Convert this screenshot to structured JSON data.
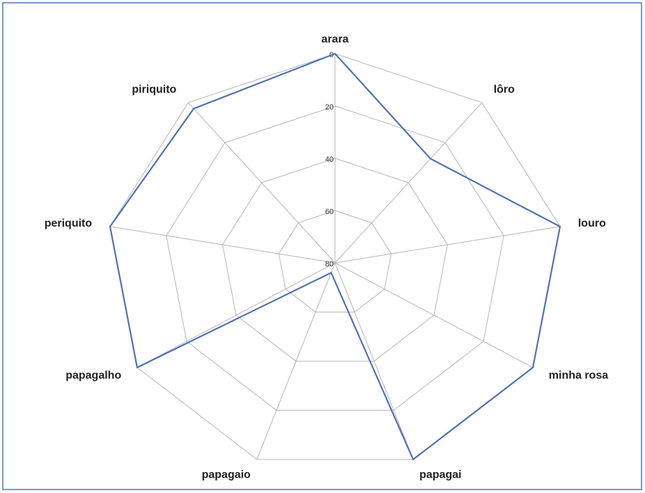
{
  "chart_data": {
    "type": "radar",
    "categories": [
      "arara",
      "lôro",
      "louro",
      "minha rosa",
      "papagai",
      "papagaio",
      "papagalho",
      "periquito",
      "piriquito"
    ],
    "series": [
      {
        "color": "#4f72b0",
        "values": [
          0,
          28,
          0,
          0,
          0,
          76,
          0,
          0,
          3
        ]
      }
    ],
    "ylim": [
      80,
      0
    ],
    "yticks": [
      0,
      20,
      40,
      60,
      80
    ],
    "grid": true
  }
}
